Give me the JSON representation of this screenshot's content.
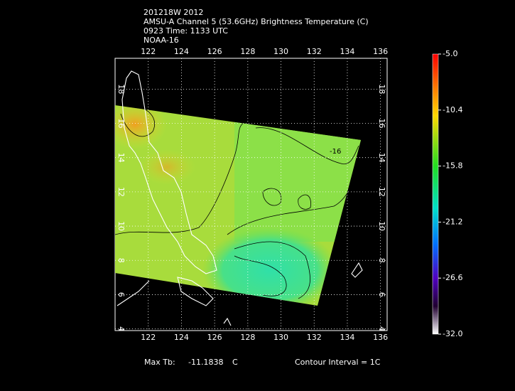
{
  "header": {
    "lines": [
      "201218W 2012",
      "AMSU-A Channel 5 (53.6GHz) Brightness Temperature (C)",
      "0923 Time: 1133 UTC",
      "NOAA-16"
    ]
  },
  "map": {
    "lonlim": [
      120,
      136.4
    ],
    "latlim": [
      3.9,
      19.8
    ],
    "lonticks": [
      122,
      124,
      126,
      128,
      130,
      132,
      134,
      136
    ],
    "latticks": [
      4,
      6,
      8,
      10,
      12,
      14,
      16,
      18
    ],
    "contour_label": "-16"
  },
  "colorbar": {
    "lim": [
      -32,
      -5
    ],
    "ticks": [
      {
        "value": -5,
        "label": "-5.0"
      },
      {
        "value": -10.4,
        "label": "-10.4"
      },
      {
        "value": -15.8,
        "label": "-15.8"
      },
      {
        "value": -21.2,
        "label": "-21.2"
      },
      {
        "value": -26.6,
        "label": "-26.6"
      },
      {
        "value": -32,
        "label": "-32.0"
      }
    ]
  },
  "footer": {
    "max_label": "Max Tb:",
    "max_value": "-11.1838",
    "unit": "C",
    "contour_interval": "Contour Interval = 1C"
  }
}
